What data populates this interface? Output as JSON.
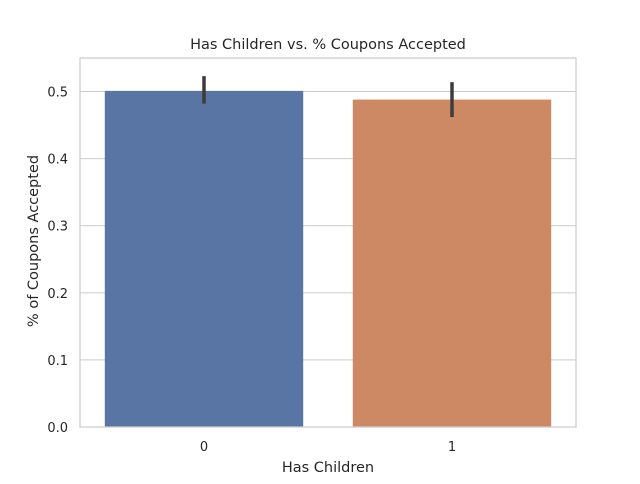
{
  "chart_data": {
    "type": "bar",
    "title": "Has Children vs. % Coupons Accepted",
    "xlabel": "Has Children",
    "ylabel": "% of Coupons Accepted",
    "categories": [
      "0",
      "1"
    ],
    "values": [
      0.501,
      0.488
    ],
    "error_bars": [
      {
        "low": 0.482,
        "high": 0.523
      },
      {
        "low": 0.462,
        "high": 0.514
      }
    ],
    "bar_colors": [
      "#5875a4",
      "#cc8963"
    ],
    "error_bar_color": "#3c3c3c",
    "ylim": [
      0,
      0.55
    ],
    "yticks": [
      0.0,
      0.1,
      0.2,
      0.3,
      0.4,
      0.5
    ],
    "ytick_labels": [
      "0.0",
      "0.1",
      "0.2",
      "0.3",
      "0.4",
      "0.5"
    ],
    "grid": "horizontal",
    "style": "seaborn-whitegrid",
    "grid_color": "#cccccc",
    "frame_color": "#cccccc"
  }
}
